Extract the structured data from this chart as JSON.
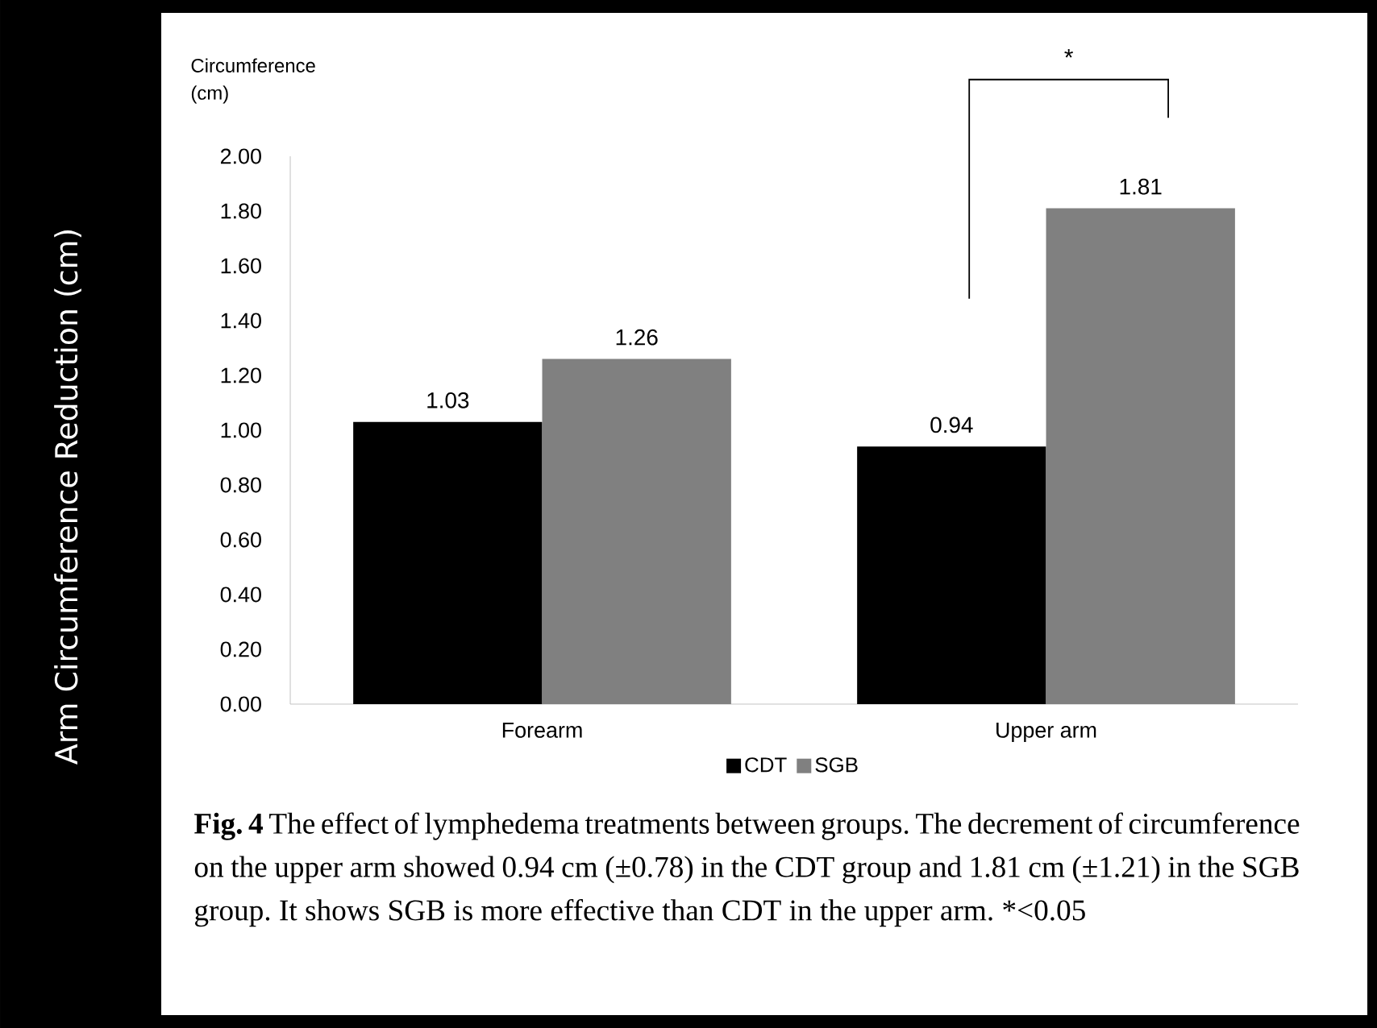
{
  "chart_data": {
    "type": "bar",
    "ylabel": "Circumference (cm)",
    "categories": [
      "Forearm",
      "Upper arm"
    ],
    "series": [
      {
        "name": "CDT",
        "color": "#000000",
        "values": [
          1.03,
          0.94
        ],
        "value_labels": [
          "1.03",
          "0.94"
        ]
      },
      {
        "name": "SGB",
        "color": "#808080",
        "values": [
          1.26,
          1.81
        ],
        "value_labels": [
          "1.26",
          "1.81"
        ]
      }
    ],
    "ylim": [
      0,
      2
    ],
    "yticks": [
      {
        "value": 0,
        "label": "0.00"
      },
      {
        "value": 0.2,
        "label": "0.20"
      },
      {
        "value": 0.4,
        "label": "0.40"
      },
      {
        "value": 0.6,
        "label": "0.60"
      },
      {
        "value": 0.8,
        "label": "0.80"
      },
      {
        "value": 1,
        "label": "1.00"
      },
      {
        "value": 1.2,
        "label": "1.20"
      },
      {
        "value": 1.4,
        "label": "1.40"
      },
      {
        "value": 1.6,
        "label": "1.60"
      },
      {
        "value": 1.8,
        "label": "1.80"
      },
      {
        "value": 2,
        "label": "2.00"
      }
    ],
    "legend": "bottom",
    "annotations": [
      "Arm Circumference Reduction (cm)",
      "*",
      "**Fig. 4** The effect of lymphedema treatments between groups. The decrement of circumference on the upper arm showed 0.94 cm (±0.78) in the CDT group and 1.81 cm (±1.21) in the SGB group. It shows SGB is more effective than CDT in the upper arm. *<0.05"
    ]
  }
}
